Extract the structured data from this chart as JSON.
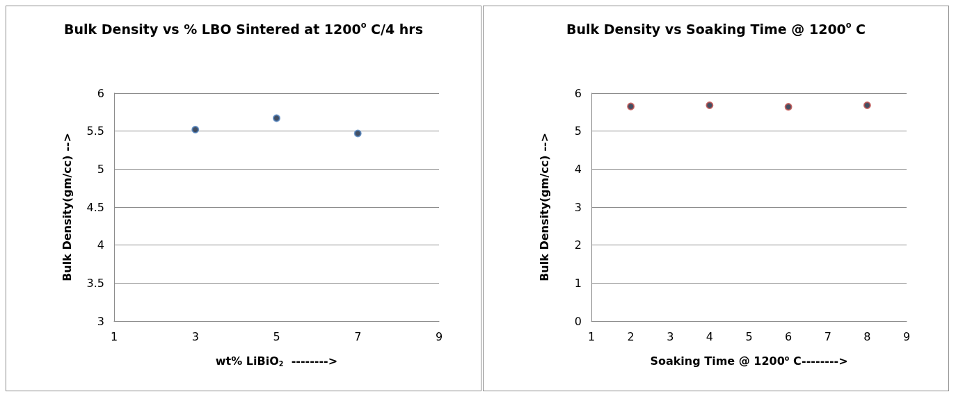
{
  "chart_data": [
    {
      "type": "scatter",
      "title": "Bulk Density vs % LBO Sintered at 1200$^{o}$ C/4 hrs",
      "xlabel": "wt% LiBiO$_{2}$  -------->",
      "ylabel": "Bulk Density(gm/cc) -->",
      "x": [
        3,
        5,
        7
      ],
      "values": [
        5.52,
        5.67,
        5.47
      ],
      "color": "#4f81bd",
      "xlim": [
        1,
        9
      ],
      "xticks": [
        1,
        3,
        5,
        7,
        9
      ],
      "ylim": [
        3,
        6
      ],
      "yticks": [
        3,
        3.5,
        4,
        4.5,
        5,
        5.5,
        6
      ],
      "grid": "y",
      "marker": "circle"
    },
    {
      "type": "scatter",
      "title": "Bulk Density vs Soaking Time @ 1200$^{o}$ C",
      "xlabel": "Soaking Time @ 1200$^{o}$ C-------->",
      "ylabel": "Bulk Density(gm/cc) -->",
      "x": [
        2,
        4,
        6,
        8
      ],
      "values": [
        5.65,
        5.68,
        5.64,
        5.68
      ],
      "color": "#c0504d",
      "xlim": [
        1,
        9
      ],
      "xticks": [
        1,
        2,
        3,
        4,
        5,
        6,
        7,
        8,
        9
      ],
      "ylim": [
        0,
        6
      ],
      "yticks": [
        0,
        1,
        2,
        3,
        4,
        5,
        6
      ],
      "grid": "y",
      "marker": "circle"
    }
  ]
}
